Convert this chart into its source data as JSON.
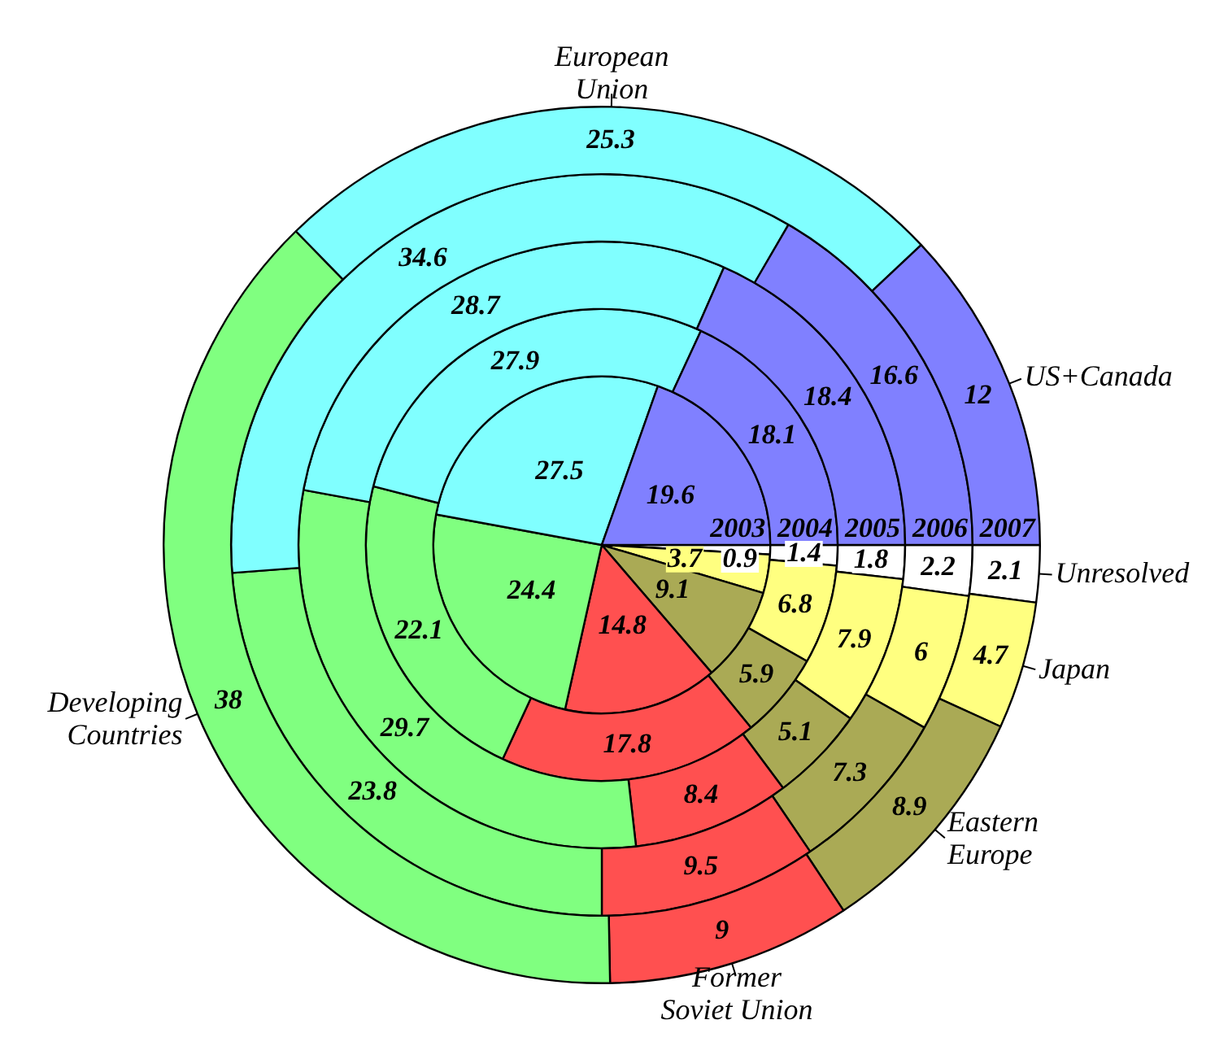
{
  "chart_data": {
    "type": "pie",
    "categories": [
      "Unresolved",
      "Japan",
      "Eastern Europe",
      "Former Soviet Union",
      "Developing Countries",
      "European Union",
      "US+Canada"
    ],
    "colors": [
      "#ffffff",
      "#ffff80",
      "#aaaa55",
      "#ff5050",
      "#80ff80",
      "#80ffff",
      "#8080ff"
    ],
    "series": [
      {
        "name": "2007",
        "values": [
          2.1,
          4.7,
          8.9,
          9,
          38,
          25.3,
          12
        ]
      },
      {
        "name": "2006",
        "values": [
          2.2,
          6,
          7.3,
          9.5,
          23.8,
          34.6,
          16.6
        ]
      },
      {
        "name": "2005",
        "values": [
          1.8,
          7.9,
          5.1,
          8.4,
          29.7,
          28.7,
          18.4
        ]
      },
      {
        "name": "2004",
        "values": [
          1.4,
          6.8,
          5.9,
          17.8,
          22.1,
          27.9,
          18.1
        ]
      },
      {
        "name": "2003",
        "values": [
          0.9,
          3.7,
          9.1,
          14.8,
          24.4,
          27.5,
          19.6
        ]
      }
    ],
    "data_labels": true,
    "legend": false
  }
}
